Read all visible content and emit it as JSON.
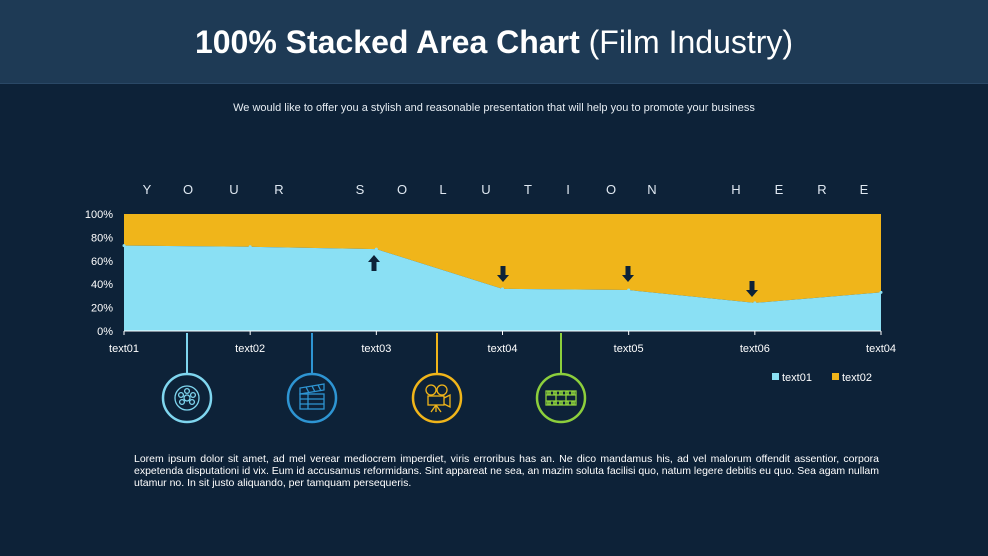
{
  "title": {
    "bold": "100% Stacked Area Chart",
    "normal": "(Film Industry)"
  },
  "subtitle": "We would like to offer you a stylish and reasonable presentation that will help you to promote your business",
  "banner_letters": [
    "Y",
    "O",
    "U",
    "R",
    "S",
    "O",
    "L",
    "U",
    "T",
    "I",
    "O",
    "N",
    "H",
    "E",
    "R",
    "E"
  ],
  "body_text": "Lorem ipsum dolor sit amet, ad mel verear mediocrem imperdiet, viris erroribus has an. Ne dico mandamus his, ad vel malorum offendit assentior, corpora expetenda disputationi id vix. Eum id accusamus reformidans. Sint appareat ne sea, an mazim soluta facilisi quo, natum legere debitis eu quo. Sea agam nullam utamur no. In sit justo aliquando, per tamquam persequeris.",
  "icons": [
    {
      "name": "film-reel-icon",
      "color": "#7fd6ef"
    },
    {
      "name": "clapperboard-icon",
      "color": "#2e95d3"
    },
    {
      "name": "movie-camera-icon",
      "color": "#f0b51a"
    },
    {
      "name": "film-strip-icon",
      "color": "#8ccf3c"
    }
  ],
  "arrows": [
    {
      "category": "text03",
      "direction": "up"
    },
    {
      "category": "text04",
      "direction": "down"
    },
    {
      "category": "text05",
      "direction": "down"
    },
    {
      "category": "text06",
      "direction": "down"
    }
  ],
  "chart_data": {
    "type": "area",
    "stacked": "percent",
    "categories": [
      "text01",
      "text02",
      "text03",
      "text04",
      "text05",
      "text06",
      "text04"
    ],
    "series": [
      {
        "name": "text01",
        "color": "#8ae0f4",
        "values": [
          73,
          72,
          70,
          36,
          35,
          24,
          33
        ]
      },
      {
        "name": "text02",
        "color": "#f0b51a",
        "values": [
          27,
          28,
          30,
          64,
          65,
          76,
          67
        ]
      }
    ],
    "yticks": [
      "0%",
      "20%",
      "40%",
      "60%",
      "80%",
      "100%"
    ],
    "ylim": [
      0,
      100
    ],
    "legend": "bottom-right"
  }
}
